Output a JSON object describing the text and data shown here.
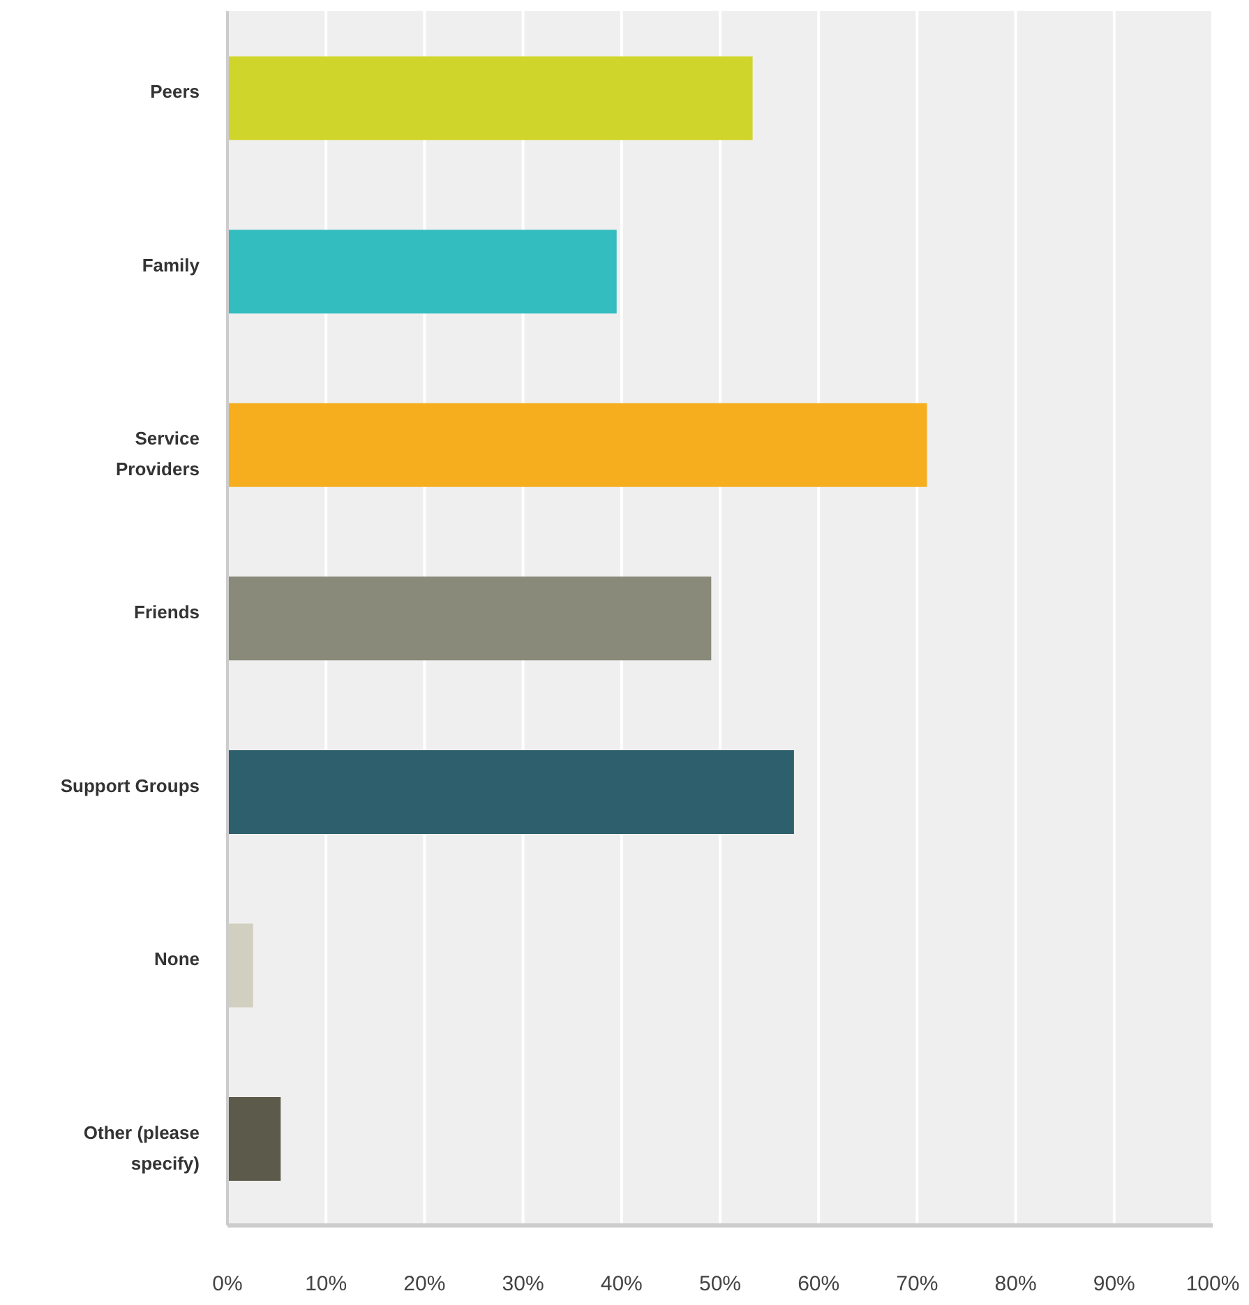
{
  "chart_data": {
    "type": "bar",
    "orientation": "horizontal",
    "categories": [
      "Peers",
      "Family",
      "Service Providers",
      "Friends",
      "Support Groups",
      "None",
      "Other (please specify)"
    ],
    "values": [
      53.3,
      39.5,
      71.0,
      49.1,
      57.5,
      2.6,
      5.4
    ],
    "colors": [
      "#cfd52a",
      "#33bdbe",
      "#f6ae1f",
      "#898a79",
      "#2e5f6c",
      "#d1d0c0",
      "#5c5a4a"
    ],
    "xlim": [
      0,
      100
    ],
    "xticks": [
      {
        "value": 0,
        "label": "0%"
      },
      {
        "value": 10,
        "label": "10%"
      },
      {
        "value": 20,
        "label": "20%"
      },
      {
        "value": 30,
        "label": "30%"
      },
      {
        "value": 40,
        "label": "40%"
      },
      {
        "value": 50,
        "label": "50%"
      },
      {
        "value": 60,
        "label": "60%"
      },
      {
        "value": 70,
        "label": "70%"
      },
      {
        "value": 80,
        "label": "80%"
      },
      {
        "value": 90,
        "label": "90%"
      },
      {
        "value": 100,
        "label": "100%"
      }
    ],
    "grid": "x"
  }
}
